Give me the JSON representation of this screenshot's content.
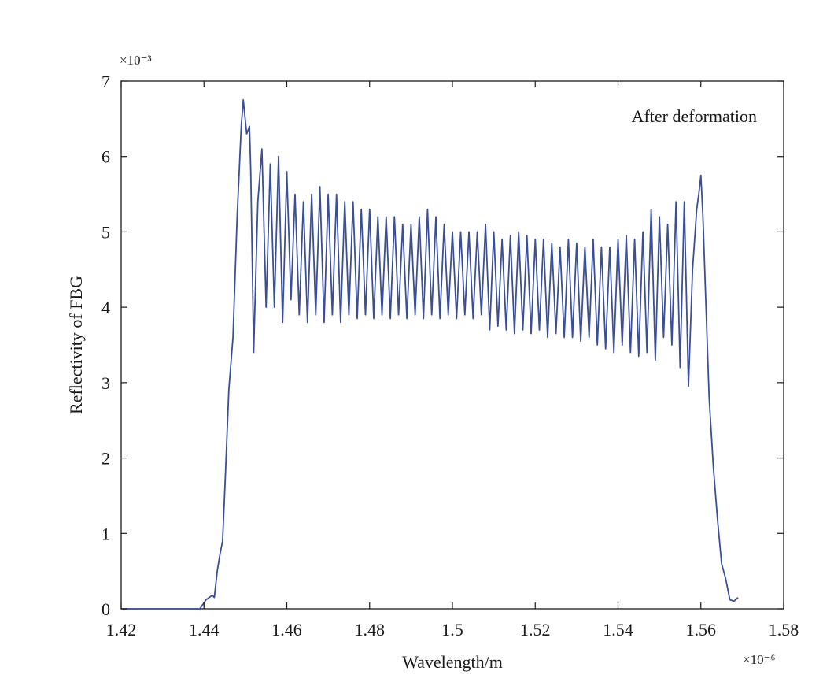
{
  "chart_data": {
    "type": "line",
    "title": "",
    "xlabel": "Wavelength/m",
    "ylabel": "Reflectivity of FBG",
    "x_multiplier_label": "×10⁻⁶",
    "y_multiplier_label": "×10⁻³",
    "xlim": [
      1.42,
      1.58
    ],
    "ylim": [
      0,
      7
    ],
    "x_ticks": [
      1.42,
      1.44,
      1.46,
      1.48,
      1.5,
      1.52,
      1.54,
      1.56,
      1.58
    ],
    "x_tick_labels": [
      "1.42",
      "1.44",
      "1.46",
      "1.48",
      "1.5",
      "1.52",
      "1.54",
      "1.56",
      "1.58"
    ],
    "y_ticks": [
      0,
      1,
      2,
      3,
      4,
      5,
      6,
      7
    ],
    "y_tick_labels": [
      "0",
      "1",
      "2",
      "3",
      "4",
      "5",
      "6",
      "7"
    ],
    "grid": false,
    "annotation": "After deformation",
    "annotation_position": "top-right",
    "series": [
      {
        "color": "#3a4f97",
        "x": [
          1.42,
          1.439,
          1.4405,
          1.442,
          1.4425,
          1.4432,
          1.4438,
          1.4445,
          1.4452,
          1.446,
          1.447,
          1.448,
          1.449,
          1.4495,
          1.4503,
          1.451,
          1.4513,
          1.4517,
          1.452,
          1.453,
          1.454,
          1.455,
          1.456,
          1.457,
          1.458,
          1.459,
          1.46,
          1.461,
          1.462,
          1.463,
          1.464,
          1.465,
          1.466,
          1.467,
          1.468,
          1.469,
          1.47,
          1.471,
          1.472,
          1.473,
          1.474,
          1.475,
          1.476,
          1.477,
          1.478,
          1.479,
          1.48,
          1.481,
          1.482,
          1.483,
          1.484,
          1.485,
          1.486,
          1.487,
          1.488,
          1.489,
          1.49,
          1.491,
          1.492,
          1.493,
          1.494,
          1.495,
          1.496,
          1.497,
          1.498,
          1.499,
          1.5,
          1.501,
          1.502,
          1.503,
          1.504,
          1.505,
          1.506,
          1.507,
          1.508,
          1.509,
          1.51,
          1.511,
          1.512,
          1.513,
          1.514,
          1.515,
          1.516,
          1.517,
          1.518,
          1.519,
          1.52,
          1.521,
          1.522,
          1.523,
          1.524,
          1.525,
          1.526,
          1.527,
          1.528,
          1.529,
          1.53,
          1.531,
          1.532,
          1.533,
          1.534,
          1.535,
          1.536,
          1.537,
          1.538,
          1.539,
          1.54,
          1.541,
          1.542,
          1.543,
          1.544,
          1.545,
          1.546,
          1.547,
          1.548,
          1.549,
          1.55,
          1.551,
          1.552,
          1.553,
          1.554,
          1.555,
          1.556,
          1.557,
          1.558,
          1.559,
          1.5595,
          1.56,
          1.5605,
          1.561,
          1.562,
          1.563,
          1.564,
          1.565,
          1.566,
          1.567,
          1.568,
          1.569
        ],
        "y": [
          0,
          0,
          0.12,
          0.18,
          0.15,
          0.5,
          0.7,
          0.9,
          1.8,
          2.9,
          3.6,
          5.2,
          6.4,
          6.75,
          6.3,
          6.4,
          5.8,
          4.5,
          3.4,
          5.4,
          6.1,
          4.0,
          5.9,
          4.0,
          6.0,
          3.8,
          5.8,
          4.1,
          5.5,
          3.9,
          5.4,
          3.8,
          5.5,
          3.9,
          5.6,
          3.8,
          5.5,
          3.9,
          5.5,
          3.8,
          5.4,
          3.9,
          5.4,
          3.85,
          5.3,
          3.9,
          5.3,
          3.85,
          5.2,
          3.9,
          5.2,
          3.85,
          5.2,
          3.9,
          5.1,
          3.85,
          5.1,
          3.9,
          5.2,
          3.85,
          5.3,
          3.9,
          5.2,
          3.85,
          5.1,
          3.9,
          5.0,
          3.85,
          5.0,
          3.9,
          5.0,
          3.85,
          5.0,
          3.9,
          5.1,
          3.7,
          5.0,
          3.75,
          4.9,
          3.7,
          4.95,
          3.65,
          5.0,
          3.7,
          4.95,
          3.65,
          4.9,
          3.7,
          4.9,
          3.6,
          4.85,
          3.65,
          4.8,
          3.6,
          4.9,
          3.6,
          4.85,
          3.55,
          4.8,
          3.6,
          4.9,
          3.5,
          4.8,
          3.45,
          4.8,
          3.4,
          4.9,
          3.5,
          4.95,
          3.4,
          4.9,
          3.35,
          5.0,
          3.4,
          5.3,
          3.3,
          5.2,
          3.6,
          5.1,
          3.5,
          5.4,
          3.2,
          5.4,
          2.95,
          4.5,
          5.3,
          5.5,
          5.75,
          5.2,
          4.4,
          2.8,
          1.9,
          1.2,
          0.6,
          0.4,
          0.12,
          0.1,
          0.15
        ]
      }
    ]
  }
}
